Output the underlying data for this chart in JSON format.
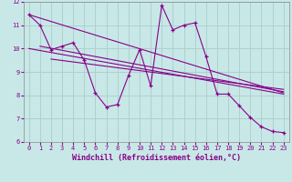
{
  "background_color": "#c8e8e8",
  "grid_color": "#b0d0d0",
  "line_color": "#880088",
  "axis_label_color": "#880088",
  "tick_color": "#880088",
  "xlabel": "Windchill (Refroidissement éolien,°C)",
  "xlim": [
    -0.5,
    23.5
  ],
  "ylim": [
    6,
    12
  ],
  "yticks": [
    6,
    7,
    8,
    9,
    10,
    11,
    12
  ],
  "xticks": [
    0,
    1,
    2,
    3,
    4,
    5,
    6,
    7,
    8,
    9,
    10,
    11,
    12,
    13,
    14,
    15,
    16,
    17,
    18,
    19,
    20,
    21,
    22,
    23
  ],
  "zigzag_x": [
    0,
    1,
    2,
    3,
    4,
    5,
    6,
    7,
    8,
    9,
    10,
    11,
    12,
    13,
    14,
    15,
    16,
    17,
    18,
    19,
    20,
    21,
    22,
    23
  ],
  "zigzag_y": [
    11.45,
    11.0,
    9.95,
    10.1,
    10.25,
    9.5,
    8.1,
    7.5,
    7.6,
    8.85,
    9.95,
    8.4,
    11.85,
    10.8,
    11.0,
    11.1,
    9.65,
    8.05,
    8.05,
    7.55,
    7.05,
    6.65,
    6.45,
    6.4
  ],
  "trend1_x": [
    0,
    23
  ],
  "trend1_y": [
    11.45,
    8.1
  ],
  "trend2_x": [
    0,
    23
  ],
  "trend2_y": [
    10.0,
    8.05
  ],
  "trend3_x": [
    1,
    23
  ],
  "trend3_y": [
    10.1,
    8.15
  ],
  "trend4_x": [
    2,
    23
  ],
  "trend4_y": [
    9.55,
    8.25
  ]
}
